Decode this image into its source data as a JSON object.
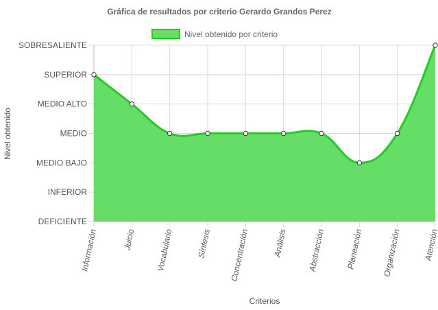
{
  "chart_data": {
    "type": "area",
    "title": "Gráfica de resultados por criterio Gerardo Grandos Perez",
    "xlabel": "Criterios",
    "ylabel": "Nivel obtenido",
    "y_categories": [
      "DEFICIENTE",
      "INFERIOR",
      "MEDIO BAJO",
      "MEDIO",
      "MEDIO ALTO",
      "SUPERIOR",
      "SOBRESALIENTE"
    ],
    "categories": [
      "Información",
      "Juicio",
      "Vocabulario",
      "Síntesis",
      "Concentración",
      "Análisis",
      "Abstracción",
      "Planeación",
      "Organización",
      "Atención"
    ],
    "series": [
      {
        "name": "Nivel obtenido por criterio",
        "values": [
          "SUPERIOR",
          "MEDIO ALTO",
          "MEDIO",
          "MEDIO",
          "MEDIO",
          "MEDIO",
          "MEDIO",
          "MEDIO BAJO",
          "MEDIO",
          "SOBRESALIENTE"
        ]
      }
    ],
    "legend": "top",
    "grid": true,
    "colors": {
      "fill": "#66dd66",
      "line": "#22cc22",
      "grid": "#d9d9d9",
      "point_fill": "#ffffff",
      "point_stroke": "#333333"
    }
  }
}
